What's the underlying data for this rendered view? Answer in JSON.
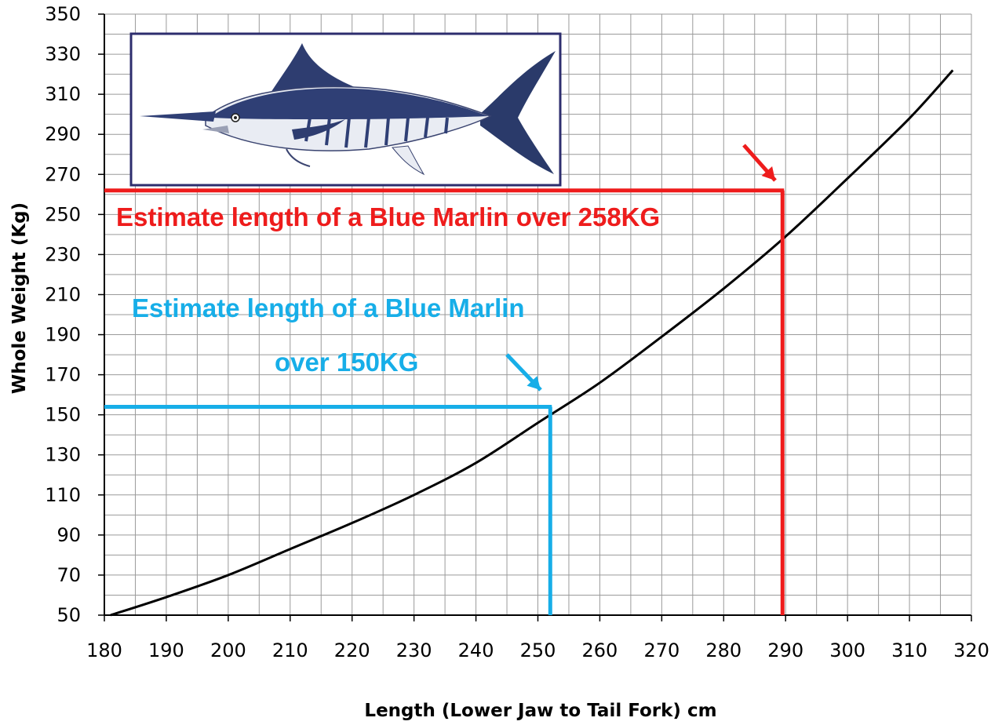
{
  "chart_data": {
    "type": "line",
    "xlabel": "Length (Lower Jaw to Tail Fork) cm",
    "ylabel": "Whole Weight (Kg)",
    "xlim": [
      180,
      320
    ],
    "ylim": [
      50,
      350
    ],
    "x_ticks": [
      180,
      190,
      200,
      210,
      220,
      230,
      240,
      250,
      260,
      270,
      280,
      290,
      300,
      310,
      320
    ],
    "y_ticks": [
      50,
      70,
      90,
      110,
      130,
      150,
      170,
      190,
      210,
      230,
      250,
      270,
      290,
      310,
      330,
      350
    ],
    "grid": true,
    "series": [
      {
        "color": "#000000",
        "x": [
          181,
          190,
          200,
          210,
          220,
          230,
          240,
          250,
          260,
          270,
          280,
          290,
          300,
          310,
          317
        ],
        "y": [
          50,
          59,
          70,
          83,
          96,
          110,
          126,
          146,
          166,
          189,
          213,
          239,
          268,
          298,
          322
        ]
      }
    ],
    "annotations": [
      {
        "label": "Estimate length of a Blue Marlin over 258KG",
        "color": "#ee1c1c",
        "weight": 262,
        "length": 289.5
      },
      {
        "label_line1": "Estimate length of a Blue Marlin",
        "label_line2": "over 150KG",
        "color": "#17aee8",
        "weight": 154,
        "length": 252
      }
    ]
  },
  "illustration": {
    "icon": "blue-marlin-illustration",
    "frame_color": "#2d2d6e"
  }
}
